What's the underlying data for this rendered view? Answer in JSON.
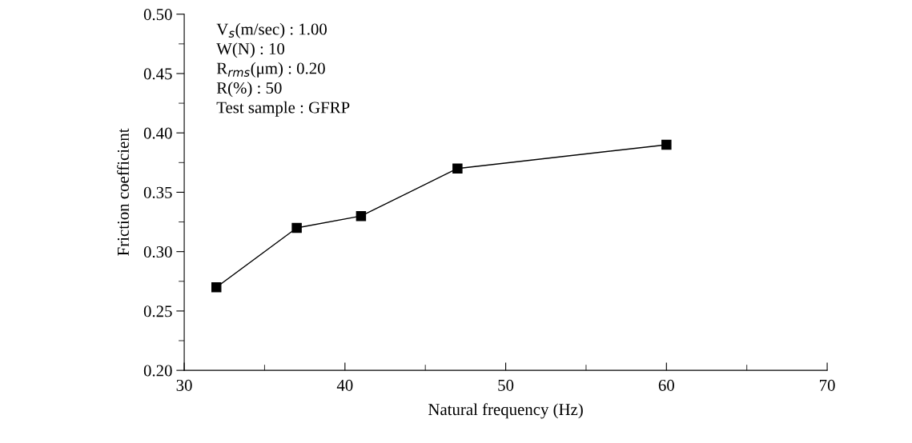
{
  "chart_data": {
    "type": "line",
    "xlabel": "Natural frequency (Hz)",
    "ylabel": "Friction coefficient",
    "x": [
      32,
      37,
      41,
      47,
      60
    ],
    "series": [
      {
        "color": "#000000",
        "values": [
          0.27,
          0.32,
          0.33,
          0.37,
          0.39
        ]
      }
    ],
    "marker": "square",
    "line_style": "solid",
    "grid": false,
    "legend": false,
    "xlim": [
      30,
      70
    ],
    "xticks": [
      30,
      40,
      50,
      60,
      70
    ],
    "ylim": [
      0.2,
      0.5
    ],
    "yticks": [
      {
        "value": 0.2,
        "label": "0.20"
      },
      {
        "value": 0.25,
        "label": "0.25"
      },
      {
        "value": 0.3,
        "label": "0.30"
      },
      {
        "value": 0.35,
        "label": "0.35"
      },
      {
        "value": 0.4,
        "label": "0.40"
      },
      {
        "value": 0.45,
        "label": "0.45"
      },
      {
        "value": 0.5,
        "label": "0.50"
      }
    ],
    "annotations": [
      "V$_{s}$(m/sec) : 1.00",
      "W(N) : 10",
      "R$_{rms}$(μm) : 0.20",
      "R(%) : 50",
      "Test sample : GFRP"
    ]
  }
}
